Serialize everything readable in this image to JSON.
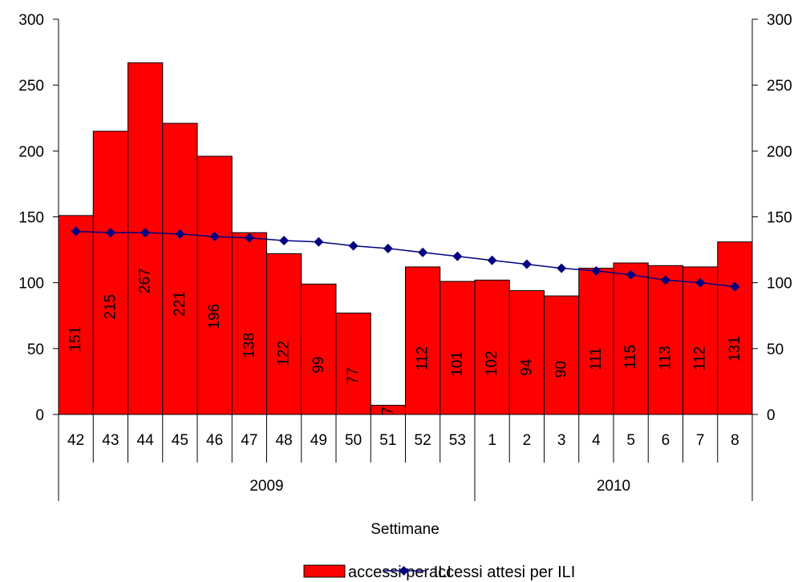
{
  "chart_data": {
    "type": "bar",
    "categories": [
      "42",
      "43",
      "44",
      "45",
      "46",
      "47",
      "48",
      "49",
      "50",
      "51",
      "52",
      "53",
      "1",
      "2",
      "3",
      "4",
      "5",
      "6",
      "7",
      "8"
    ],
    "category_groups": [
      {
        "label": "2009",
        "span": 12
      },
      {
        "label": "2010",
        "span": 8
      }
    ],
    "series": [
      {
        "name": "accessi per ILI",
        "kind": "bar",
        "color": "#ff0000",
        "values": [
          151,
          215,
          267,
          221,
          196,
          138,
          122,
          99,
          77,
          7,
          112,
          101,
          102,
          94,
          90,
          111,
          115,
          113,
          112,
          131
        ],
        "data_labels": [
          "151",
          "215",
          "267",
          "221",
          "196",
          "138",
          "122",
          "99",
          "77",
          "7",
          "112",
          "101",
          "102",
          "94",
          "90",
          "111",
          "115",
          "113",
          "112",
          "131"
        ]
      },
      {
        "name": "accessi attesi per ILI",
        "kind": "line",
        "color": "#000080",
        "marker": "diamond",
        "values": [
          139,
          138,
          138,
          137,
          135,
          134,
          132,
          131,
          128,
          126,
          123,
          120,
          117,
          114,
          111,
          109,
          106,
          102,
          100,
          97
        ]
      }
    ],
    "xlabel": "Settimane",
    "ylim": [
      0,
      300
    ],
    "yticks": [
      "0",
      "50",
      "100",
      "150",
      "200",
      "250",
      "300"
    ],
    "y2ticks": [
      "0",
      "50",
      "100",
      "150",
      "200",
      "250",
      "300"
    ],
    "grid": false,
    "legend_position": "bottom"
  }
}
